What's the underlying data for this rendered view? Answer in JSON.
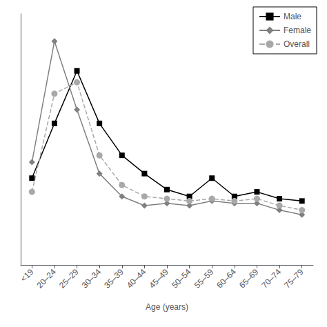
{
  "chart_data": {
    "type": "line",
    "x_label": "Age (years)",
    "categories": [
      "<19",
      "20–24",
      "25–29",
      "30–34",
      "35–39",
      "40–44",
      "45–49",
      "50–54",
      "55–59",
      "60–64",
      "65–69",
      "70–74",
      "75–79"
    ],
    "series": [
      {
        "name": "Male",
        "color": "#000000",
        "marker": "square",
        "line_style": "solid",
        "values": [
          3.8,
          6.2,
          8.5,
          6.2,
          4.8,
          4.0,
          3.3,
          3.0,
          3.8,
          3.0,
          3.2,
          2.9,
          2.8
        ]
      },
      {
        "name": "Female",
        "color": "#808080",
        "marker": "diamond",
        "line_style": "solid",
        "values": [
          4.5,
          9.8,
          6.8,
          4.0,
          3.0,
          2.6,
          2.7,
          2.6,
          2.8,
          2.7,
          2.7,
          2.4,
          2.2
        ]
      },
      {
        "name": "Overall",
        "color": "#a8a8a8",
        "marker": "circle",
        "line_style": "dashed",
        "values": [
          3.2,
          7.5,
          8.0,
          4.8,
          3.5,
          3.0,
          2.9,
          2.8,
          2.9,
          2.8,
          2.9,
          2.6,
          2.4
        ]
      }
    ],
    "ylim": [
      0,
      11
    ],
    "tick_labels": "x",
    "grid": false,
    "legend": "upper right"
  }
}
